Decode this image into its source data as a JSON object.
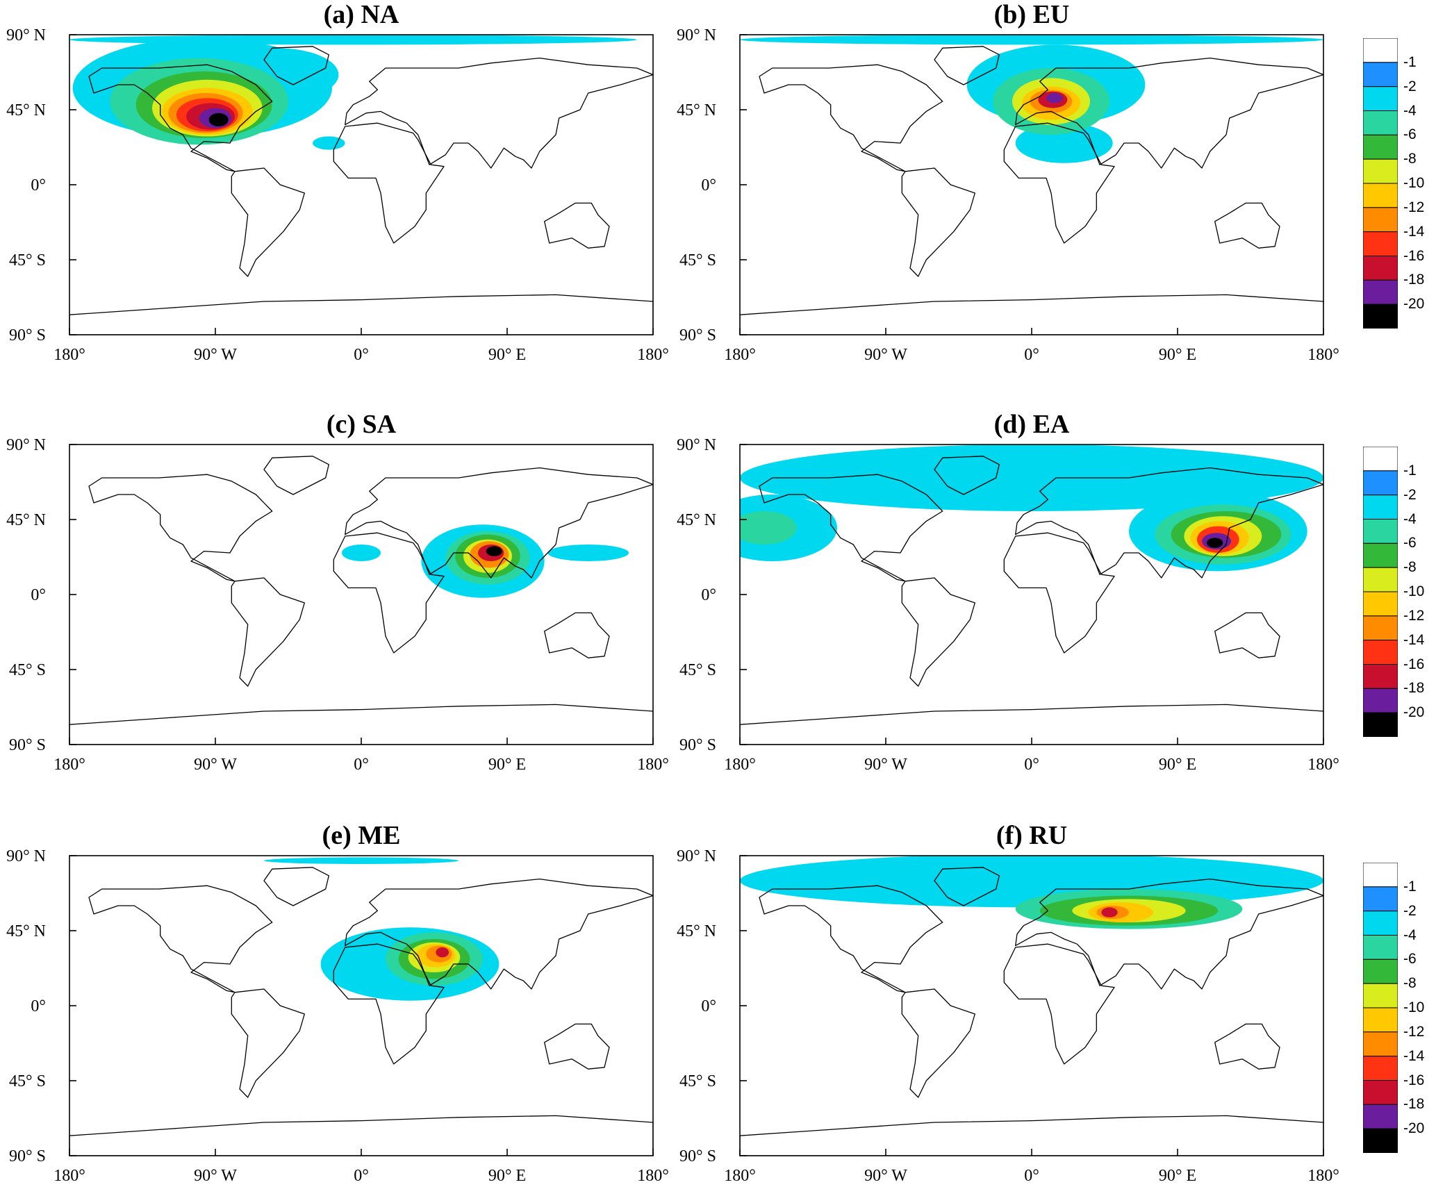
{
  "panels": [
    {
      "id": "a",
      "title": "(a) NA",
      "region": "na"
    },
    {
      "id": "b",
      "title": "(b) EU",
      "region": "eu"
    },
    {
      "id": "c",
      "title": "(c) SA",
      "region": "sa"
    },
    {
      "id": "d",
      "title": "(d) EA",
      "region": "ea"
    },
    {
      "id": "e",
      "title": "(e) ME",
      "region": "me"
    },
    {
      "id": "f",
      "title": "(f) RU",
      "region": "ru"
    }
  ],
  "axes": {
    "lat_ticks": [
      {
        "value": 90,
        "label": "90° N"
      },
      {
        "value": 45,
        "label": "45° N"
      },
      {
        "value": 0,
        "label": "0°"
      },
      {
        "value": -45,
        "label": "45° S"
      },
      {
        "value": -90,
        "label": "90° S"
      }
    ],
    "lon_ticks": [
      {
        "value": -180,
        "label": "180°"
      },
      {
        "value": -90,
        "label": "90° W"
      },
      {
        "value": 0,
        "label": "0°"
      },
      {
        "value": 90,
        "label": "90° E"
      },
      {
        "value": 180,
        "label": "180°"
      }
    ],
    "lon_range": [
      -180,
      180
    ],
    "lat_range": [
      -90,
      90
    ]
  },
  "colorbar": {
    "levels": [
      "-1",
      "-2",
      "-4",
      "-6",
      "-8",
      "-10",
      "-12",
      "-14",
      "-16",
      "-18",
      "-20"
    ],
    "colors": [
      "#ffffff",
      "#1e90ff",
      "#00d8f0",
      "#2ad5a0",
      "#34b83a",
      "#d8ec1e",
      "#ffc800",
      "#ff8c00",
      "#ff3314",
      "#c8102e",
      "#6a1e9e",
      "#000000"
    ]
  },
  "colorbars_shown": [
    0,
    1,
    2
  ],
  "fields": {
    "na": {
      "blobs": [
        {
          "lon": -98,
          "lat": 58,
          "rx": 80,
          "ry": 30,
          "v": 2
        },
        {
          "lon": -52,
          "lat": 66,
          "rx": 38,
          "ry": 16,
          "v": 2
        },
        {
          "lon": -100,
          "lat": 50,
          "rx": 55,
          "ry": 26,
          "v": 4
        },
        {
          "lon": -97,
          "lat": 48,
          "rx": 42,
          "ry": 20,
          "v": 6
        },
        {
          "lon": -95,
          "lat": 46,
          "rx": 34,
          "ry": 17,
          "v": 8
        },
        {
          "lon": -95,
          "lat": 44,
          "rx": 28,
          "ry": 14,
          "v": 10
        },
        {
          "lon": -96,
          "lat": 43,
          "rx": 23,
          "ry": 12,
          "v": 12
        },
        {
          "lon": -95,
          "lat": 42,
          "rx": 19,
          "ry": 10,
          "v": 14
        },
        {
          "lon": -93,
          "lat": 41,
          "rx": 15,
          "ry": 8,
          "v": 16
        },
        {
          "lon": -90,
          "lat": 40,
          "rx": 10,
          "ry": 6,
          "v": 18
        },
        {
          "lon": -88,
          "lat": 39,
          "rx": 6,
          "ry": 4,
          "v": 20
        },
        {
          "lon": -5,
          "lat": 87,
          "rx": 175,
          "ry": 3,
          "v": 2
        },
        {
          "lon": -20,
          "lat": 25,
          "rx": 10,
          "ry": 4,
          "v": 2
        }
      ]
    },
    "eu": {
      "blobs": [
        {
          "lon": 15,
          "lat": 60,
          "rx": 55,
          "ry": 24,
          "v": 2
        },
        {
          "lon": 12,
          "lat": 50,
          "rx": 36,
          "ry": 20,
          "v": 4
        },
        {
          "lon": 12,
          "lat": 50,
          "rx": 24,
          "ry": 14,
          "v": 8
        },
        {
          "lon": 12,
          "lat": 49,
          "rx": 18,
          "ry": 10,
          "v": 10
        },
        {
          "lon": 12,
          "lat": 50,
          "rx": 13,
          "ry": 7,
          "v": 12
        },
        {
          "lon": 13,
          "lat": 51,
          "rx": 9,
          "ry": 5,
          "v": 16
        },
        {
          "lon": 14,
          "lat": 52,
          "rx": 5,
          "ry": 3,
          "v": 18
        },
        {
          "lon": 20,
          "lat": 25,
          "rx": 30,
          "ry": 12,
          "v": 2
        },
        {
          "lon": 0,
          "lat": 87,
          "rx": 180,
          "ry": 3,
          "v": 2
        }
      ]
    },
    "sa": {
      "blobs": [
        {
          "lon": 75,
          "lat": 20,
          "rx": 38,
          "ry": 22,
          "v": 2
        },
        {
          "lon": 78,
          "lat": 22,
          "rx": 26,
          "ry": 16,
          "v": 4
        },
        {
          "lon": 78,
          "lat": 23,
          "rx": 20,
          "ry": 13,
          "v": 6
        },
        {
          "lon": 78,
          "lat": 23,
          "rx": 15,
          "ry": 10,
          "v": 8
        },
        {
          "lon": 79,
          "lat": 24,
          "rx": 12,
          "ry": 8,
          "v": 12
        },
        {
          "lon": 80,
          "lat": 25,
          "rx": 8,
          "ry": 5,
          "v": 16
        },
        {
          "lon": 82,
          "lat": 26,
          "rx": 5,
          "ry": 3,
          "v": 20
        },
        {
          "lon": 140,
          "lat": 25,
          "rx": 25,
          "ry": 5,
          "v": 2
        },
        {
          "lon": 0,
          "lat": 25,
          "rx": 12,
          "ry": 5,
          "v": 2
        }
      ]
    },
    "ea": {
      "blobs": [
        {
          "lon": 0,
          "lat": 70,
          "rx": 180,
          "ry": 20,
          "v": 2
        },
        {
          "lon": -160,
          "lat": 40,
          "rx": 40,
          "ry": 20,
          "v": 2
        },
        {
          "lon": -165,
          "lat": 40,
          "rx": 20,
          "ry": 10,
          "v": 4
        },
        {
          "lon": 115,
          "lat": 38,
          "rx": 55,
          "ry": 24,
          "v": 2
        },
        {
          "lon": 118,
          "lat": 36,
          "rx": 42,
          "ry": 18,
          "v": 4
        },
        {
          "lon": 120,
          "lat": 36,
          "rx": 34,
          "ry": 14,
          "v": 6
        },
        {
          "lon": 118,
          "lat": 35,
          "rx": 24,
          "ry": 12,
          "v": 8
        },
        {
          "lon": 116,
          "lat": 34,
          "rx": 18,
          "ry": 10,
          "v": 10
        },
        {
          "lon": 115,
          "lat": 33,
          "rx": 13,
          "ry": 8,
          "v": 14
        },
        {
          "lon": 114,
          "lat": 32,
          "rx": 9,
          "ry": 5,
          "v": 18
        },
        {
          "lon": 113,
          "lat": 31,
          "rx": 5,
          "ry": 3,
          "v": 20
        }
      ]
    },
    "me": {
      "blobs": [
        {
          "lon": 30,
          "lat": 25,
          "rx": 55,
          "ry": 22,
          "v": 2
        },
        {
          "lon": 45,
          "lat": 28,
          "rx": 30,
          "ry": 16,
          "v": 4
        },
        {
          "lon": 45,
          "lat": 28,
          "rx": 22,
          "ry": 12,
          "v": 6
        },
        {
          "lon": 45,
          "lat": 29,
          "rx": 16,
          "ry": 9,
          "v": 8
        },
        {
          "lon": 46,
          "lat": 30,
          "rx": 12,
          "ry": 7,
          "v": 10
        },
        {
          "lon": 48,
          "lat": 31,
          "rx": 8,
          "ry": 5,
          "v": 12
        },
        {
          "lon": 50,
          "lat": 32,
          "rx": 4,
          "ry": 3,
          "v": 16
        },
        {
          "lon": 0,
          "lat": 87,
          "rx": 60,
          "ry": 2,
          "v": 2
        }
      ]
    },
    "ru": {
      "blobs": [
        {
          "lon": 0,
          "lat": 75,
          "rx": 180,
          "ry": 16,
          "v": 2
        },
        {
          "lon": 60,
          "lat": 58,
          "rx": 70,
          "ry": 12,
          "v": 4
        },
        {
          "lon": 60,
          "lat": 57,
          "rx": 55,
          "ry": 9,
          "v": 6
        },
        {
          "lon": 60,
          "lat": 57,
          "rx": 35,
          "ry": 7,
          "v": 8
        },
        {
          "lon": 55,
          "lat": 56,
          "rx": 20,
          "ry": 6,
          "v": 10
        },
        {
          "lon": 50,
          "lat": 56,
          "rx": 10,
          "ry": 4,
          "v": 12
        },
        {
          "lon": 48,
          "lat": 56,
          "rx": 5,
          "ry": 3,
          "v": 16
        }
      ]
    }
  },
  "land_polygons": [
    {
      "name": "north-america",
      "pts": [
        [
          -168,
          65
        ],
        [
          -160,
          70
        ],
        [
          -140,
          70
        ],
        [
          -125,
          70
        ],
        [
          -95,
          72
        ],
        [
          -80,
          68
        ],
        [
          -65,
          60
        ],
        [
          -55,
          50
        ],
        [
          -65,
          44
        ],
        [
          -75,
          35
        ],
        [
          -81,
          25
        ],
        [
          -97,
          26
        ],
        [
          -105,
          20
        ],
        [
          -95,
          16
        ],
        [
          -83,
          9
        ],
        [
          -78,
          8
        ],
        [
          -105,
          22
        ],
        [
          -110,
          30
        ],
        [
          -118,
          34
        ],
        [
          -124,
          42
        ],
        [
          -124,
          48
        ],
        [
          -132,
          55
        ],
        [
          -140,
          60
        ],
        [
          -150,
          60
        ],
        [
          -165,
          55
        ]
      ]
    },
    {
      "name": "greenland",
      "pts": [
        [
          -55,
          82
        ],
        [
          -30,
          83
        ],
        [
          -20,
          78
        ],
        [
          -22,
          70
        ],
        [
          -42,
          60
        ],
        [
          -52,
          65
        ],
        [
          -60,
          75
        ]
      ]
    },
    {
      "name": "south-america",
      "pts": [
        [
          -78,
          8
        ],
        [
          -60,
          10
        ],
        [
          -50,
          0
        ],
        [
          -35,
          -5
        ],
        [
          -38,
          -15
        ],
        [
          -48,
          -28
        ],
        [
          -58,
          -38
        ],
        [
          -65,
          -45
        ],
        [
          -70,
          -55
        ],
        [
          -75,
          -50
        ],
        [
          -72,
          -35
        ],
        [
          -70,
          -18
        ],
        [
          -80,
          -5
        ],
        [
          -80,
          5
        ]
      ]
    },
    {
      "name": "eurasia",
      "pts": [
        [
          -10,
          36
        ],
        [
          -9,
          43
        ],
        [
          -5,
          48
        ],
        [
          5,
          53
        ],
        [
          10,
          57
        ],
        [
          5,
          62
        ],
        [
          15,
          70
        ],
        [
          30,
          70
        ],
        [
          60,
          70
        ],
        [
          80,
          73
        ],
        [
          110,
          76
        ],
        [
          140,
          72
        ],
        [
          170,
          70
        ],
        [
          180,
          66
        ],
        [
          160,
          60
        ],
        [
          140,
          55
        ],
        [
          135,
          45
        ],
        [
          122,
          40
        ],
        [
          120,
          30
        ],
        [
          110,
          20
        ],
        [
          105,
          10
        ],
        [
          100,
          15
        ],
        [
          95,
          17
        ],
        [
          88,
          22
        ],
        [
          80,
          10
        ],
        [
          72,
          20
        ],
        [
          66,
          25
        ],
        [
          57,
          25
        ],
        [
          52,
          18
        ],
        [
          42,
          12
        ],
        [
          35,
          30
        ],
        [
          28,
          37
        ],
        [
          20,
          40
        ],
        [
          12,
          44
        ],
        [
          3,
          43
        ]
      ]
    },
    {
      "name": "africa",
      "pts": [
        [
          -17,
          21
        ],
        [
          -10,
          35
        ],
        [
          10,
          37
        ],
        [
          32,
          31
        ],
        [
          35,
          27
        ],
        [
          43,
          12
        ],
        [
          51,
          11
        ],
        [
          40,
          -5
        ],
        [
          40,
          -15
        ],
        [
          33,
          -25
        ],
        [
          20,
          -35
        ],
        [
          15,
          -25
        ],
        [
          12,
          -5
        ],
        [
          9,
          4
        ],
        [
          -8,
          4
        ],
        [
          -17,
          14
        ]
      ]
    },
    {
      "name": "australia",
      "pts": [
        [
          113,
          -22
        ],
        [
          122,
          -17
        ],
        [
          132,
          -11
        ],
        [
          142,
          -11
        ],
        [
          146,
          -18
        ],
        [
          153,
          -25
        ],
        [
          150,
          -37
        ],
        [
          140,
          -38
        ],
        [
          130,
          -32
        ],
        [
          116,
          -35
        ]
      ]
    },
    {
      "name": "antarctica",
      "pts": [
        [
          -180,
          -78
        ],
        [
          -120,
          -74
        ],
        [
          -60,
          -70
        ],
        [
          0,
          -69
        ],
        [
          60,
          -67
        ],
        [
          120,
          -66
        ],
        [
          180,
          -70
        ],
        [
          180,
          -90
        ],
        [
          -180,
          -90
        ]
      ]
    }
  ]
}
